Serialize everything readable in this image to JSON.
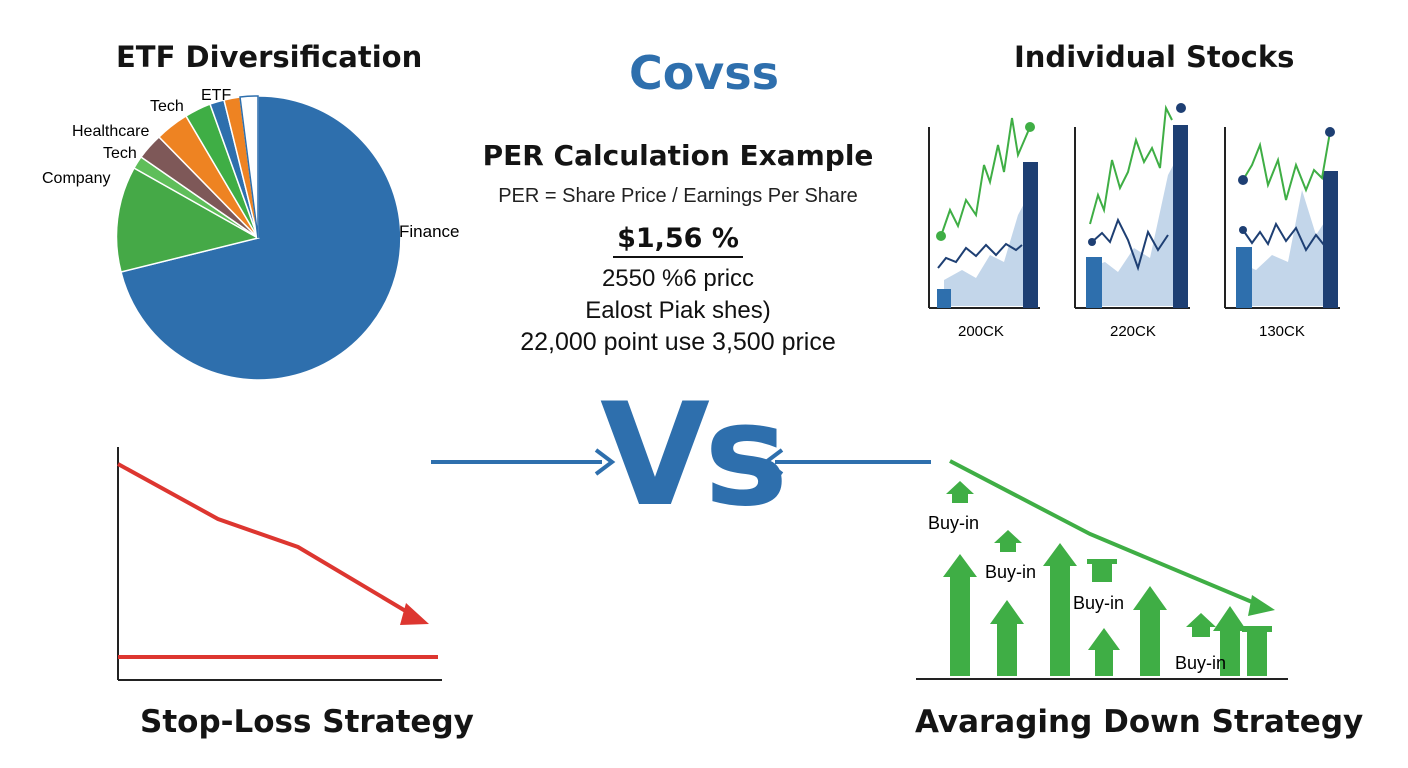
{
  "etf": {
    "title": "ETF Diversification",
    "labels": {
      "etf": "ETF",
      "tech_top": "Tech",
      "healthcare": "Healthcare",
      "tech": "Tech",
      "company": "Company",
      "finance": "Finance"
    }
  },
  "center": {
    "brand": "Covss",
    "heading": "PER Calculation Example",
    "formula": "PER = Share Price / Earnings Per Share",
    "value": "$1,56 %",
    "line1": "2550 %6 pricc",
    "line2": "Ealost Piak shes)",
    "line3": "22,000 point use 3,500 price",
    "vs": "Vs"
  },
  "stocks": {
    "title": "Individual Stocks",
    "labels": [
      "200CK",
      "220CK",
      "130CK"
    ]
  },
  "stoploss": {
    "title": "Stop-Loss Strategy"
  },
  "averaging": {
    "title": "Avaraging Down Strategy",
    "buyin": [
      "Buy-in",
      "Buy-in",
      "Buy-in",
      "Buy-in"
    ]
  },
  "colors": {
    "blue": "#2e6fad",
    "dark_blue": "#1e3f73",
    "light_blue": "#c3d6ea",
    "green": "#3fae45",
    "red": "#dd3630",
    "orange": "#ee8322",
    "brown": "#7e5858"
  },
  "chart_data": {
    "type": "pie",
    "slices": [
      {
        "label": "Finance",
        "value": 71.5
      },
      {
        "label": "Company",
        "value": 11.5
      },
      {
        "label": "Tech",
        "value": 3.5
      },
      {
        "label": "Healthcare",
        "value": 5.0
      },
      {
        "label": "Tech",
        "value": 3.5
      },
      {
        "label": "ETF",
        "value": 5.0
      }
    ]
  }
}
